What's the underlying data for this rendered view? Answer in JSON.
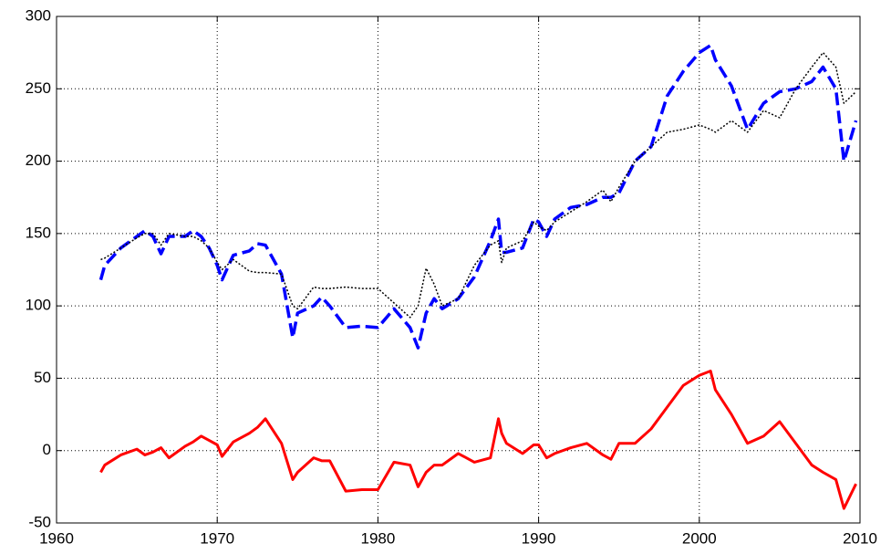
{
  "chart_data": {
    "type": "line",
    "x": [
      1962.75,
      1963,
      1964,
      1965,
      1965.5,
      1966,
      1966.5,
      1967,
      1968,
      1968.5,
      1969,
      1969.5,
      1970,
      1970.3,
      1971,
      1972,
      1972.5,
      1973,
      1974,
      1974.7,
      1975,
      1976,
      1976.5,
      1977,
      1978,
      1979,
      1980,
      1981,
      1982,
      1982.5,
      1983,
      1983.5,
      1984,
      1985,
      1986,
      1987,
      1987.5,
      1987.7,
      1988,
      1989,
      1989.7,
      1990,
      1990.5,
      1991,
      1992,
      1993,
      1994,
      1994.5,
      1995,
      1996,
      1997,
      1998,
      1999,
      2000,
      2000.7,
      2001,
      2002,
      2003,
      2004,
      2005,
      2006,
      2007,
      2007.7,
      2008.5,
      2009,
      2009.75
    ],
    "series": [
      {
        "color": "#0000ff",
        "style": "dashed",
        "values": [
          118,
          128,
          140,
          148,
          152,
          148,
          136,
          148,
          148,
          152,
          148,
          140,
          128,
          118,
          135,
          138,
          143,
          142,
          122,
          78,
          95,
          100,
          106,
          100,
          85,
          86,
          85,
          98,
          85,
          71,
          95,
          105,
          98,
          105,
          120,
          145,
          160,
          137,
          137,
          140,
          160,
          158,
          148,
          160,
          168,
          170,
          175,
          175,
          178,
          200,
          210,
          245,
          262,
          275,
          280,
          270,
          252,
          222,
          240,
          248,
          250,
          255,
          265,
          250,
          200,
          228
        ]
      },
      {
        "color": "#000000",
        "style": "dotted",
        "values": [
          132,
          133,
          140,
          147,
          150,
          150,
          142,
          150,
          148,
          148,
          145,
          140,
          130,
          125,
          132,
          124,
          123,
          123,
          122,
          100,
          98,
          113,
          112,
          112,
          113,
          112,
          112,
          102,
          92,
          100,
          126,
          115,
          100,
          105,
          128,
          142,
          145,
          130,
          140,
          145,
          158,
          155,
          152,
          158,
          165,
          172,
          180,
          172,
          182,
          200,
          210,
          220,
          222,
          225,
          222,
          220,
          228,
          220,
          235,
          230,
          250,
          265,
          275,
          265,
          240,
          248
        ]
      },
      {
        "color": "#ff0000",
        "style": "solid",
        "values": [
          -15,
          -10,
          -3,
          1,
          -3,
          -1,
          2,
          -5,
          3,
          6,
          10,
          7,
          4,
          -4,
          6,
          12,
          16,
          22,
          5,
          -20,
          -15,
          -5,
          -7,
          -7,
          -28,
          -27,
          -27,
          -8,
          -10,
          -25,
          -15,
          -10,
          -10,
          -2,
          -8,
          -5,
          22,
          12,
          5,
          -2,
          4,
          4,
          -5,
          -2,
          2,
          5,
          -3,
          -6,
          5,
          5,
          15,
          30,
          45,
          52,
          55,
          42,
          25,
          5,
          10,
          20,
          5,
          -10,
          -15,
          -20,
          -40,
          -23
        ]
      }
    ],
    "xlim": [
      1960,
      2010
    ],
    "xticks": [
      1960,
      1970,
      1980,
      1990,
      2000,
      2010
    ],
    "ylim": [
      -50,
      300
    ],
    "yticks": [
      -50,
      0,
      50,
      100,
      150,
      200,
      250,
      300
    ],
    "grid": true
  }
}
